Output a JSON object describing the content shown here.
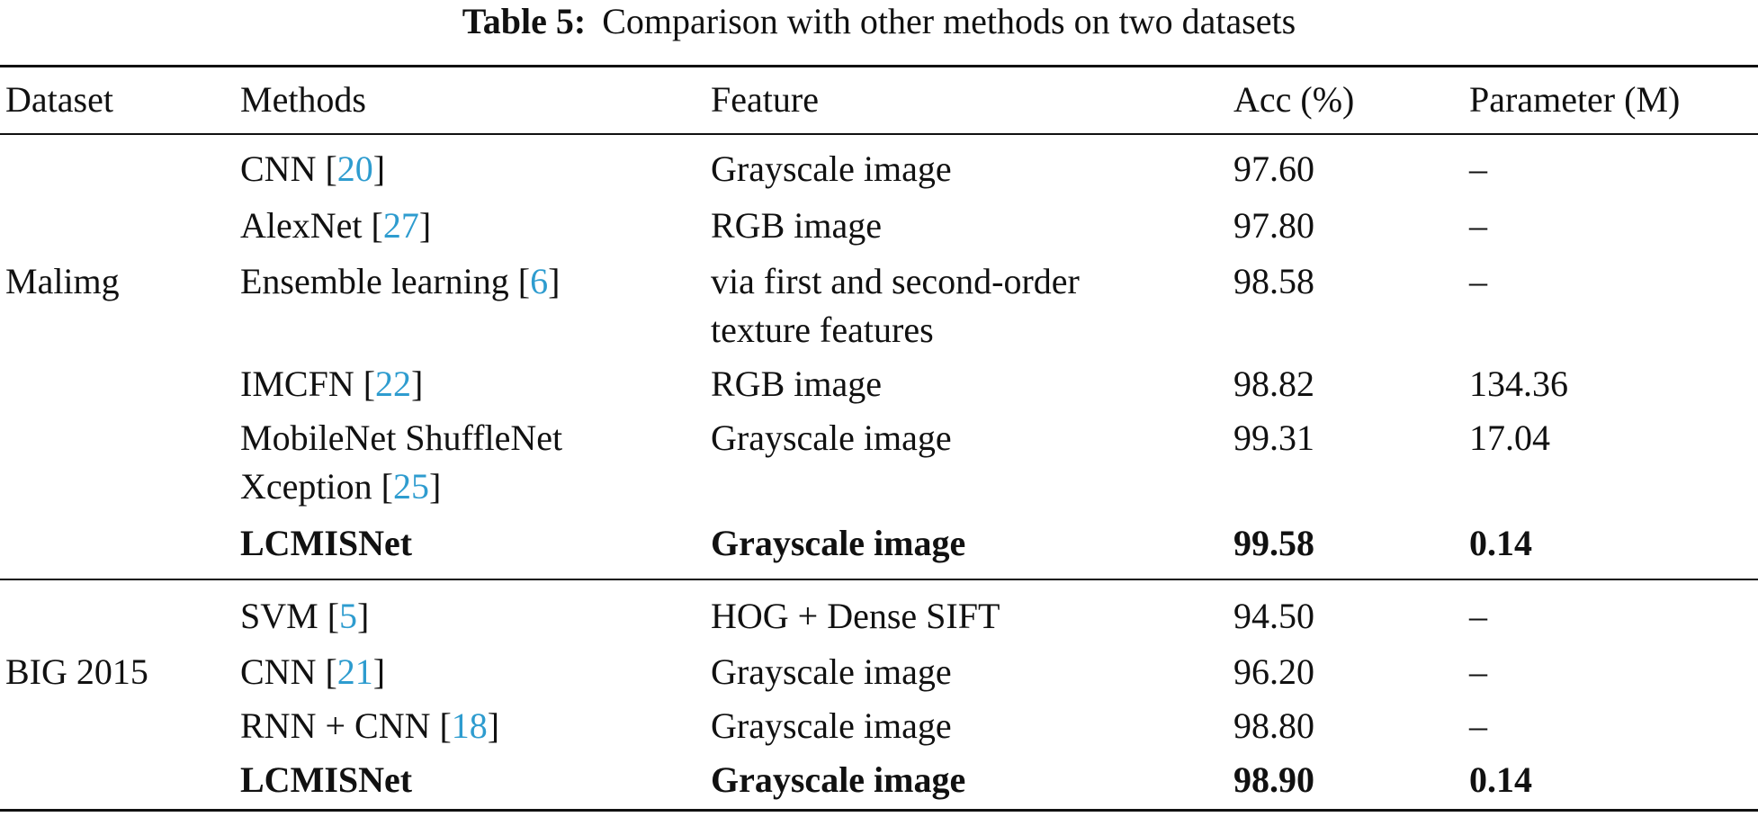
{
  "caption": {
    "label": "Table 5:",
    "text": "Comparison with other methods on two datasets"
  },
  "headers": [
    "Dataset",
    "Methods",
    "Feature",
    "Acc (%)",
    "Parameter (M)"
  ],
  "groups": [
    {
      "dataset": "Malimg",
      "rows": [
        {
          "method": "CNN [",
          "ref": "20",
          "method_end": "]",
          "feature": [
            "Grayscale image"
          ],
          "acc": "97.60",
          "param": "–",
          "bold": false
        },
        {
          "method": "AlexNet [",
          "ref": "27",
          "method_end": "]",
          "feature": [
            "RGB image"
          ],
          "acc": "97.80",
          "param": "–",
          "bold": false
        },
        {
          "method": "Ensemble learning [",
          "ref": "6",
          "method_end": "]",
          "feature": [
            "via first and second-order",
            "texture features"
          ],
          "acc": "98.58",
          "param": "–",
          "bold": false
        },
        {
          "method": "IMCFN [",
          "ref": "22",
          "method_end": "]",
          "feature": [
            "RGB image"
          ],
          "acc": "98.82",
          "param": "134.36",
          "bold": false
        },
        {
          "method": "MobileNet ShuffleNet",
          "method2": "Xception [",
          "ref": "25",
          "method_end": "]",
          "feature": [
            "Grayscale image"
          ],
          "acc": "99.31",
          "param": "17.04",
          "bold": false
        },
        {
          "method": "LCMISNet",
          "ref": "",
          "method_end": "",
          "feature": [
            "Grayscale image"
          ],
          "acc": "99.58",
          "param": "0.14",
          "bold": true
        }
      ]
    },
    {
      "dataset": "BIG 2015",
      "rows": [
        {
          "method": "SVM [",
          "ref": "5",
          "method_end": "]",
          "feature": [
            "HOG + Dense SIFT"
          ],
          "acc": "94.50",
          "param": "–",
          "bold": false
        },
        {
          "method": "CNN [",
          "ref": "21",
          "method_end": "]",
          "feature": [
            "Grayscale image"
          ],
          "acc": "96.20",
          "param": "–",
          "bold": false
        },
        {
          "method": "RNN + CNN [",
          "ref": "18",
          "method_end": "]",
          "feature": [
            "Grayscale image"
          ],
          "acc": "98.80",
          "param": "–",
          "bold": false
        },
        {
          "method": "LCMISNet",
          "ref": "",
          "method_end": "",
          "feature": [
            "Grayscale image"
          ],
          "acc": "98.90",
          "param": "0.14",
          "bold": true
        }
      ]
    }
  ]
}
